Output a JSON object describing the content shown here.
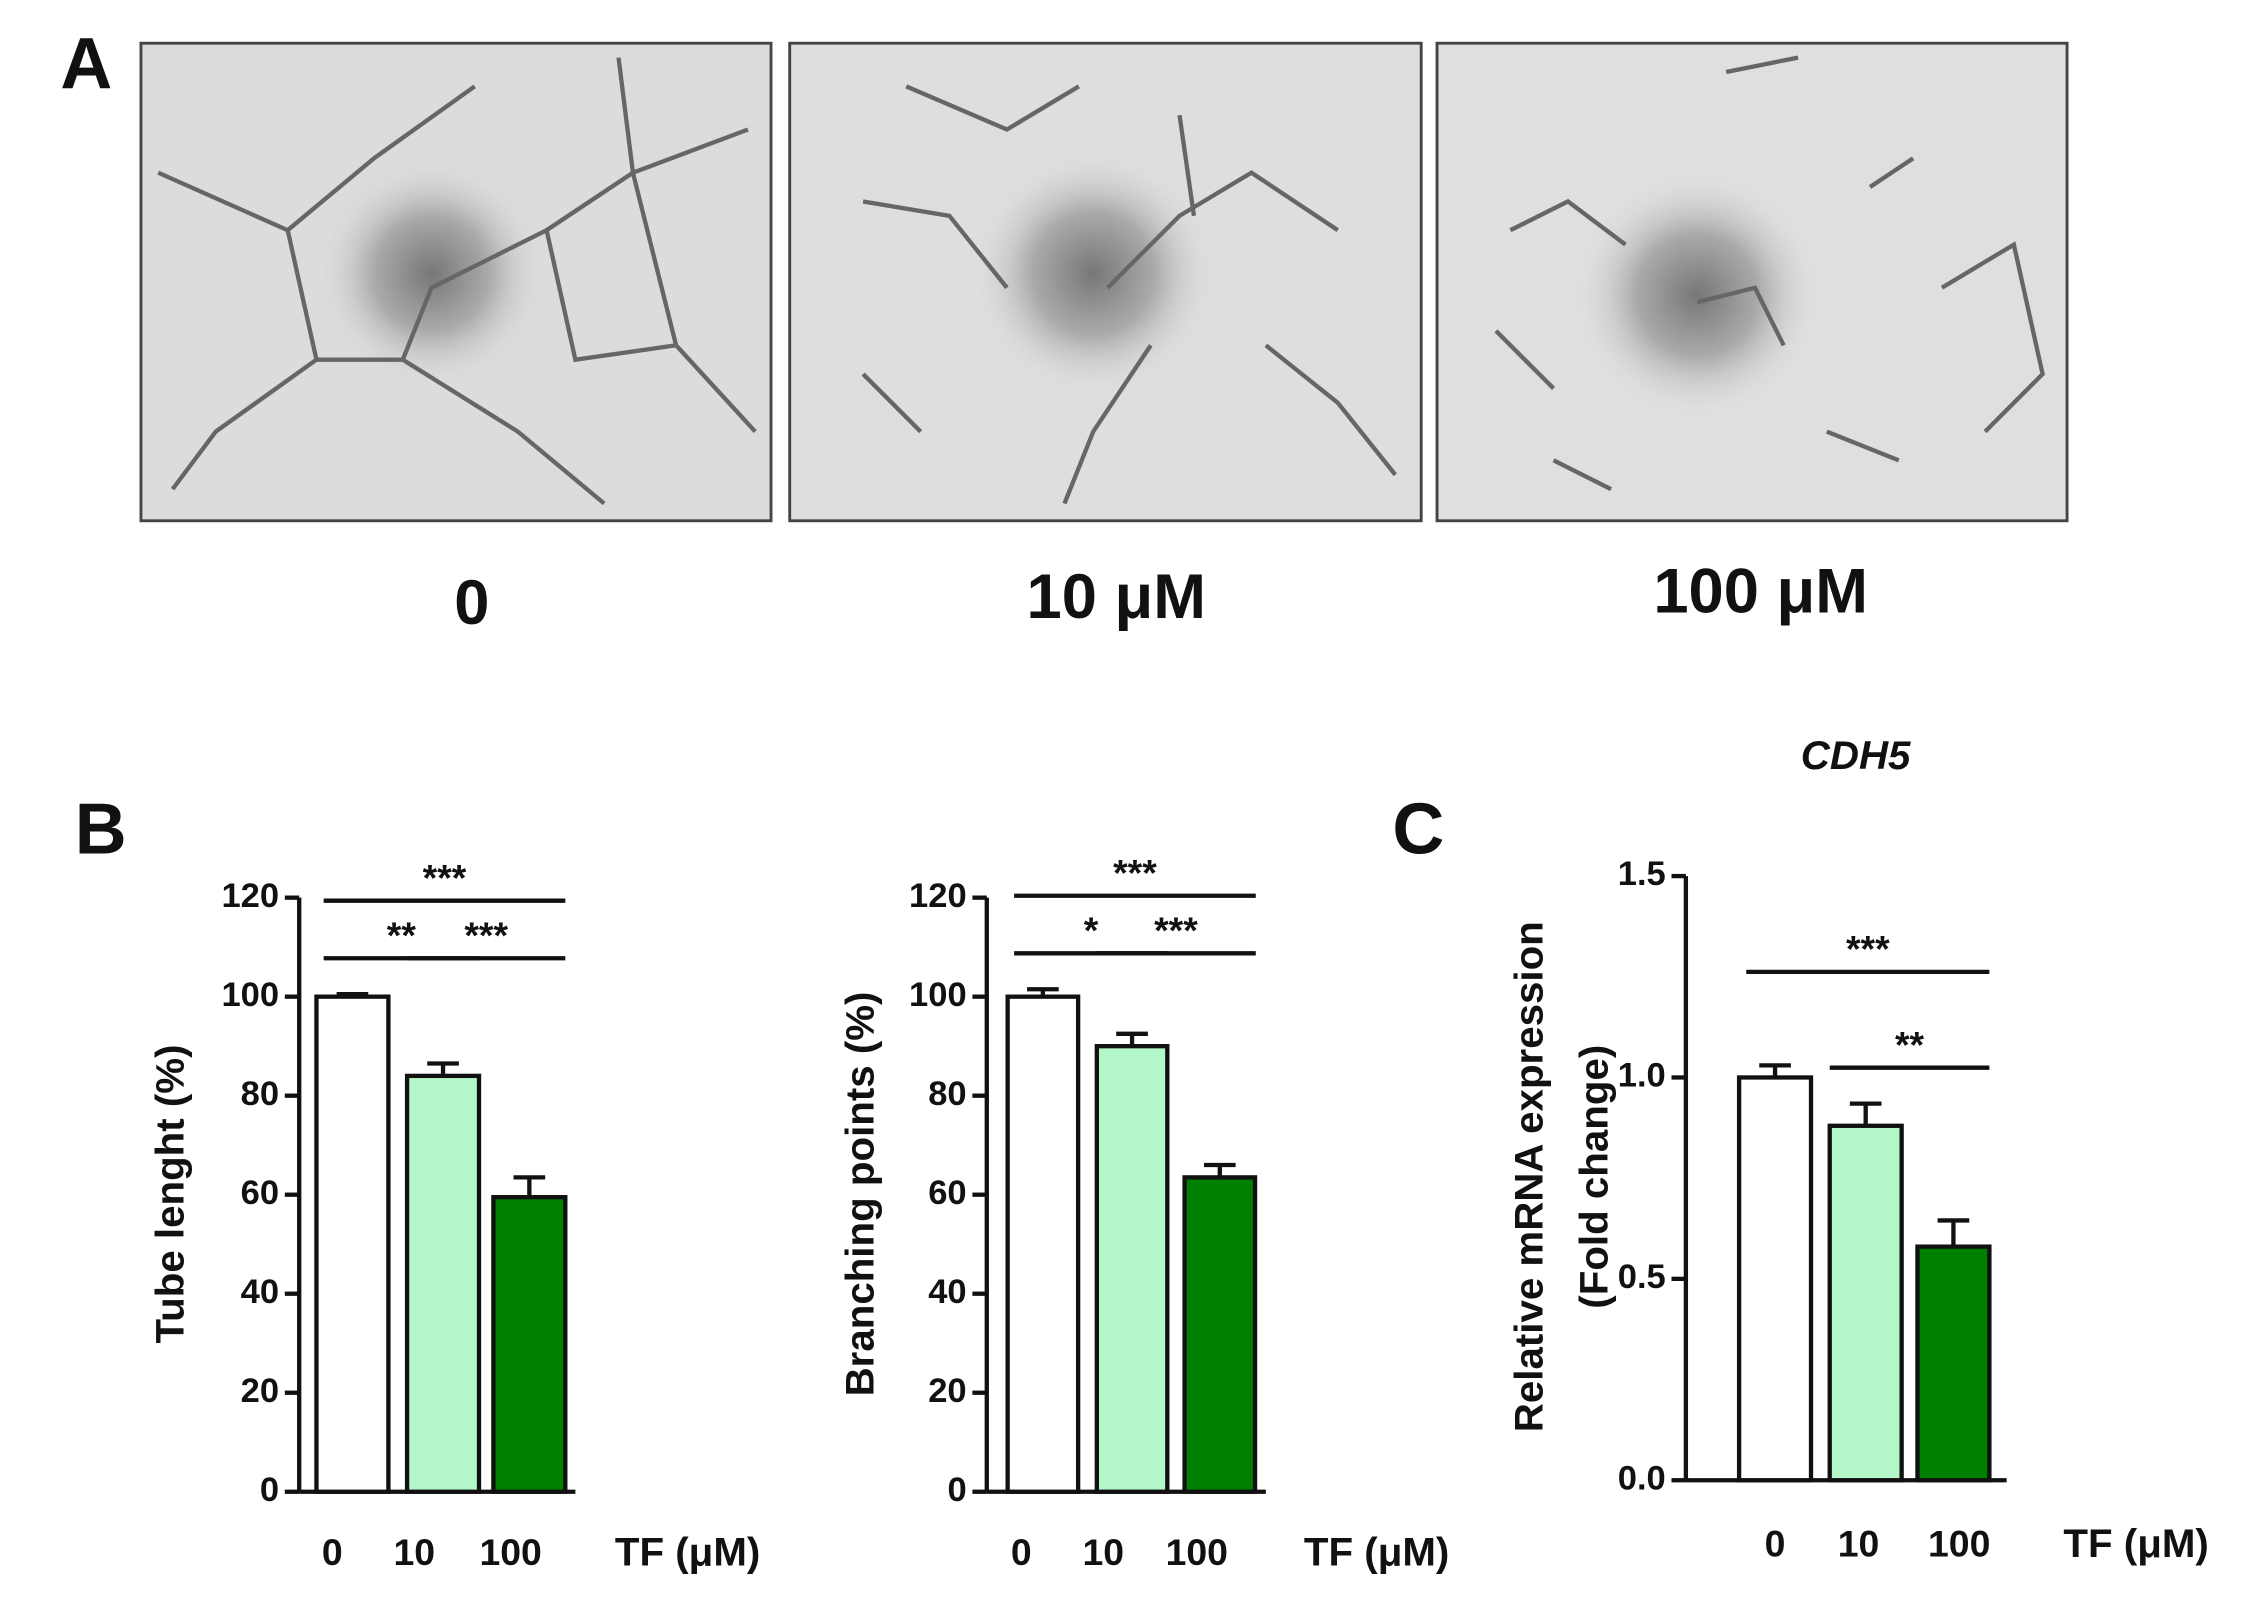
{
  "panel_labels": [
    "A",
    "B",
    "C"
  ],
  "images": {
    "captions": [
      "0",
      "10 μM",
      "100 μM"
    ]
  },
  "chart_data": [
    {
      "type": "bar",
      "ylabel": [
        "Tube lenght (%)"
      ],
      "xlabel": "TF (μM)",
      "categories": [
        "0",
        "10",
        "100"
      ],
      "values": [
        100,
        84,
        59.5
      ],
      "errors": [
        0.5,
        2.5,
        4
      ],
      "colors": [
        "#ffffff",
        "#b3f7c9",
        "#008000"
      ],
      "ylim": [
        0,
        120
      ],
      "yticks": [
        0,
        20,
        40,
        60,
        80,
        100,
        120
      ],
      "significance": [
        {
          "label": "***",
          "from": "0",
          "to": "100"
        },
        {
          "label": "**",
          "from": "0",
          "to": "10"
        },
        {
          "label": "***",
          "from": "10",
          "to": "100"
        }
      ]
    },
    {
      "type": "bar",
      "ylabel": [
        "Branching points (%)"
      ],
      "xlabel": "TF (μM)",
      "categories": [
        "0",
        "10",
        "100"
      ],
      "values": [
        100,
        90,
        63.5
      ],
      "errors": [
        1.5,
        2.5,
        2.5
      ],
      "colors": [
        "#ffffff",
        "#b3f7c9",
        "#008000"
      ],
      "ylim": [
        0,
        120
      ],
      "yticks": [
        0,
        20,
        40,
        60,
        80,
        100,
        120
      ],
      "significance": [
        {
          "label": "***",
          "from": "0",
          "to": "100"
        },
        {
          "label": "*",
          "from": "0",
          "to": "10"
        },
        {
          "label": "***",
          "from": "10",
          "to": "100"
        }
      ]
    },
    {
      "type": "bar",
      "title": "CDH5",
      "ylabel": [
        "Relative mRNA expression",
        "(Fold change)"
      ],
      "xlabel": "TF (μM)",
      "categories": [
        "0",
        "10",
        "100"
      ],
      "values": [
        1.0,
        0.88,
        0.58
      ],
      "errors": [
        0.03,
        0.055,
        0.065
      ],
      "colors": [
        "#ffffff",
        "#b3f7c9",
        "#008000"
      ],
      "ylim": [
        0,
        1.5
      ],
      "yticks": [
        {
          "value": 0,
          "label": "0.0"
        },
        {
          "value": 0.5,
          "label": "0.5"
        },
        {
          "value": 1,
          "label": "1.0"
        },
        {
          "value": 1.5,
          "label": "1.5"
        }
      ],
      "significance": [
        {
          "label": "***",
          "from": "0",
          "to": "100"
        },
        {
          "label": "**",
          "from": "10",
          "to": "100"
        }
      ]
    }
  ]
}
